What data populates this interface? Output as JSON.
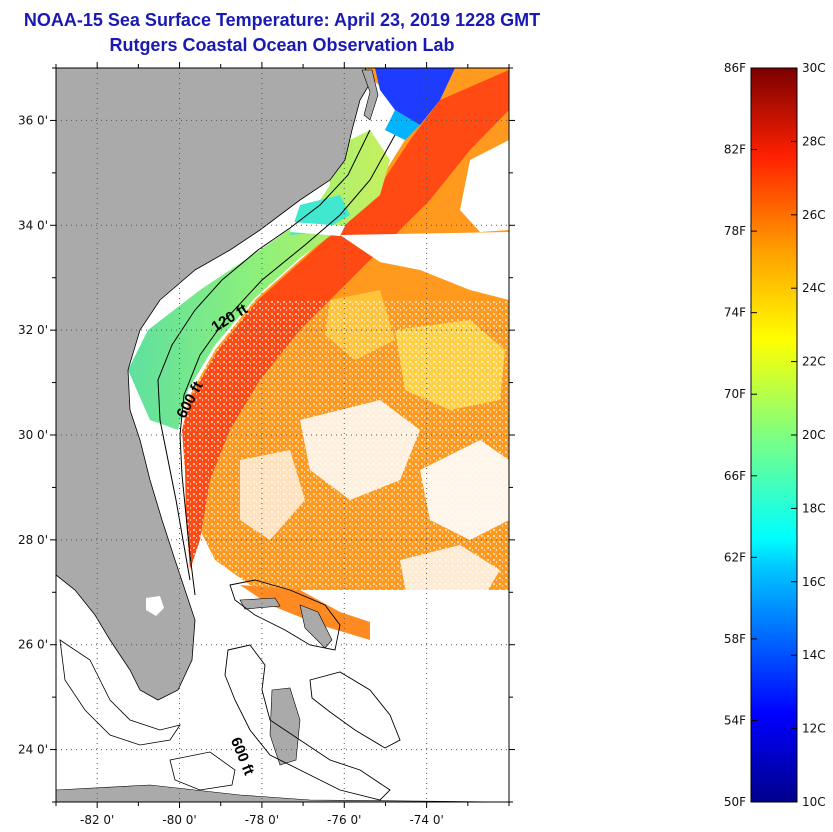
{
  "title_line1": "NOAA-15 Sea Surface Temperature:  April 23, 2019 1228 GMT",
  "title_line2": "Rutgers Coastal Ocean Observation Lab",
  "colors": {
    "title": "#1a1ab3",
    "land": "#aaaaaa",
    "no_data": "#ffffff"
  },
  "map": {
    "lon_range": [
      -83.0,
      -72.0
    ],
    "lat_range": [
      23.0,
      37.0
    ],
    "lon_ticks": [
      {
        "value": -82,
        "label": "-82 0'"
      },
      {
        "value": -80,
        "label": "-80 0'"
      },
      {
        "value": -78,
        "label": "-78 0'"
      },
      {
        "value": -76,
        "label": "-76 0'"
      },
      {
        "value": -74,
        "label": "-74 0'"
      }
    ],
    "lat_ticks": [
      {
        "value": 36,
        "label": "36 0'"
      },
      {
        "value": 34,
        "label": "34 0'"
      },
      {
        "value": 32,
        "label": "32 0'"
      },
      {
        "value": 30,
        "label": "30 0'"
      },
      {
        "value": 28,
        "label": "28 0'"
      },
      {
        "value": 26,
        "label": "26 0'"
      },
      {
        "value": 24,
        "label": "24 0'"
      }
    ],
    "gridlines": "dotted",
    "contour_labels": [
      "120 ft",
      "600 ft",
      "600 ft"
    ]
  },
  "colorbar": {
    "fahrenheit_labels": [
      "86F",
      "82F",
      "78F",
      "74F",
      "70F",
      "66F",
      "62F",
      "58F",
      "54F",
      "50F"
    ],
    "celsius_labels": [
      "30C",
      "28C",
      "26C",
      "24C",
      "22C",
      "20C",
      "18C",
      "16C",
      "14C",
      "12C",
      "10C"
    ],
    "range_c": [
      10,
      30
    ],
    "colormap": "jet"
  }
}
